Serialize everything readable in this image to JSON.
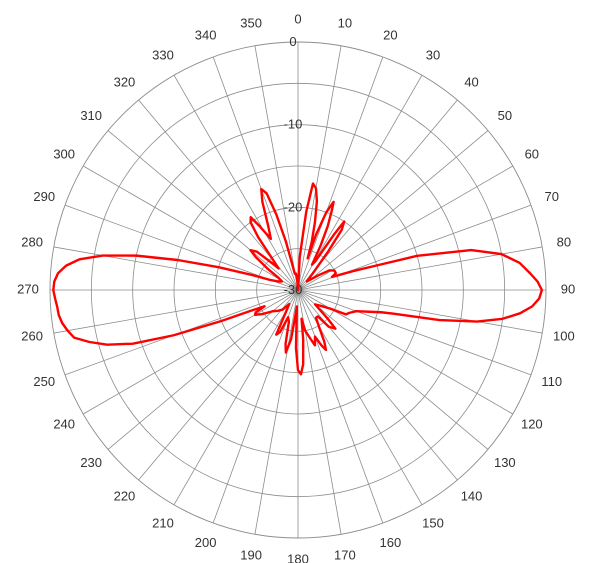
{
  "chart_data": {
    "type": "polar-line",
    "title": "",
    "angle_ticks": [
      "0",
      "10",
      "20",
      "30",
      "40",
      "50",
      "60",
      "70",
      "80",
      "90",
      "100",
      "110",
      "120",
      "130",
      "140",
      "150",
      "160",
      "170",
      "180",
      "190",
      "200",
      "210",
      "220",
      "230",
      "240",
      "250",
      "260",
      "270",
      "280",
      "290",
      "300",
      "310",
      "320",
      "330",
      "340",
      "350"
    ],
    "radial_ticks": [
      "0",
      "-10",
      "-20",
      "-30"
    ],
    "radial_range": [
      -30,
      0
    ],
    "grid": true,
    "series": [
      {
        "color": "#ff0000",
        "points": [
          [
            0,
            -30
          ],
          [
            3,
            -26
          ],
          [
            6,
            -20.5
          ],
          [
            8,
            -17
          ],
          [
            10,
            -17.5
          ],
          [
            12,
            -19
          ],
          [
            14,
            -21.5
          ],
          [
            16,
            -24
          ],
          [
            17,
            -26
          ],
          [
            18,
            -23
          ],
          [
            20,
            -20
          ],
          [
            22,
            -18.5
          ],
          [
            23,
            -19.5
          ],
          [
            25,
            -21.5
          ],
          [
            27,
            -24
          ],
          [
            29,
            -26.5
          ],
          [
            31,
            -26
          ],
          [
            33,
            -22
          ],
          [
            34,
            -20
          ],
          [
            36,
            -21
          ],
          [
            38,
            -24
          ],
          [
            41,
            -27
          ],
          [
            46,
            -28.5
          ],
          [
            54,
            -27
          ],
          [
            58,
            -25.5
          ],
          [
            62,
            -25
          ],
          [
            66,
            -25
          ],
          [
            69,
            -25.6
          ],
          [
            71,
            -23
          ],
          [
            74,
            -15
          ],
          [
            77,
            -8.5
          ],
          [
            80,
            -5
          ],
          [
            83,
            -3
          ],
          [
            86,
            -1.8
          ],
          [
            88,
            -1
          ],
          [
            90,
            -0.5
          ],
          [
            92,
            -0.8
          ],
          [
            94,
            -1.6
          ],
          [
            96,
            -3
          ],
          [
            98,
            -5
          ],
          [
            100,
            -8
          ],
          [
            102,
            -12.5
          ],
          [
            104,
            -18.2
          ],
          [
            105,
            -19.6
          ],
          [
            107,
            -21
          ],
          [
            110,
            -22.5
          ],
          [
            114,
            -23.2
          ],
          [
            117,
            -23.5
          ],
          [
            120,
            -25.5
          ],
          [
            124,
            -26.5
          ],
          [
            130,
            -27.3
          ],
          [
            134,
            -25
          ],
          [
            136,
            -23.5
          ],
          [
            140,
            -24.2
          ],
          [
            143,
            -26
          ],
          [
            147,
            -26
          ],
          [
            150,
            -25
          ],
          [
            153,
            -23
          ],
          [
            155,
            -22
          ],
          [
            157,
            -22.7
          ],
          [
            160,
            -24
          ],
          [
            163,
            -23
          ],
          [
            166,
            -24
          ],
          [
            170,
            -25
          ],
          [
            173,
            -26.5
          ],
          [
            174,
            -24
          ],
          [
            176,
            -21
          ],
          [
            178,
            -19.8
          ],
          [
            180,
            -20.3
          ],
          [
            182,
            -23
          ],
          [
            184,
            -28
          ],
          [
            186,
            -26.8
          ],
          [
            188,
            -24
          ],
          [
            191,
            -22.3
          ],
          [
            193,
            -23.3
          ],
          [
            196,
            -26
          ],
          [
            200,
            -26.5
          ],
          [
            203,
            -24.5
          ],
          [
            206,
            -24
          ],
          [
            208,
            -26.5
          ],
          [
            212,
            -28
          ],
          [
            218,
            -27
          ],
          [
            224,
            -26.5
          ],
          [
            230,
            -26
          ],
          [
            236,
            -24.8
          ],
          [
            240,
            -24
          ],
          [
            242,
            -24.2
          ],
          [
            244,
            -25.5
          ],
          [
            246,
            -24
          ],
          [
            248,
            -20
          ],
          [
            250,
            -14
          ],
          [
            252,
            -9
          ],
          [
            254,
            -6
          ],
          [
            256,
            -4
          ],
          [
            258,
            -2.3
          ],
          [
            260,
            -1.7
          ],
          [
            262,
            -1.2
          ],
          [
            264,
            -0.9
          ],
          [
            266,
            -0.8
          ],
          [
            268,
            -0.6
          ],
          [
            270,
            -0.4
          ],
          [
            272,
            -0.5
          ],
          [
            274,
            -0.9
          ],
          [
            276,
            -1.8
          ],
          [
            278,
            -3.3
          ],
          [
            280,
            -6
          ],
          [
            282,
            -10
          ],
          [
            284,
            -15
          ],
          [
            286,
            -20
          ],
          [
            288,
            -24
          ],
          [
            290,
            -26.5
          ],
          [
            294,
            -27.5
          ],
          [
            298,
            -27.8
          ],
          [
            302,
            -27.2
          ],
          [
            305,
            -25.5
          ],
          [
            308,
            -23.5
          ],
          [
            310,
            -22.5
          ],
          [
            313,
            -23.2
          ],
          [
            316,
            -25.5
          ],
          [
            318,
            -26.5
          ],
          [
            320,
            -25.5
          ],
          [
            323,
            -22
          ],
          [
            325,
            -20
          ],
          [
            327,
            -19.5
          ],
          [
            329,
            -21
          ],
          [
            332,
            -23
          ],
          [
            335,
            -21.5
          ],
          [
            338,
            -18.5
          ],
          [
            340,
            -17
          ],
          [
            342,
            -17.7
          ],
          [
            344,
            -20.5
          ],
          [
            346,
            -24
          ],
          [
            349,
            -28
          ],
          [
            353,
            -28
          ],
          [
            356,
            -29
          ],
          [
            360,
            -30
          ]
        ]
      }
    ]
  }
}
